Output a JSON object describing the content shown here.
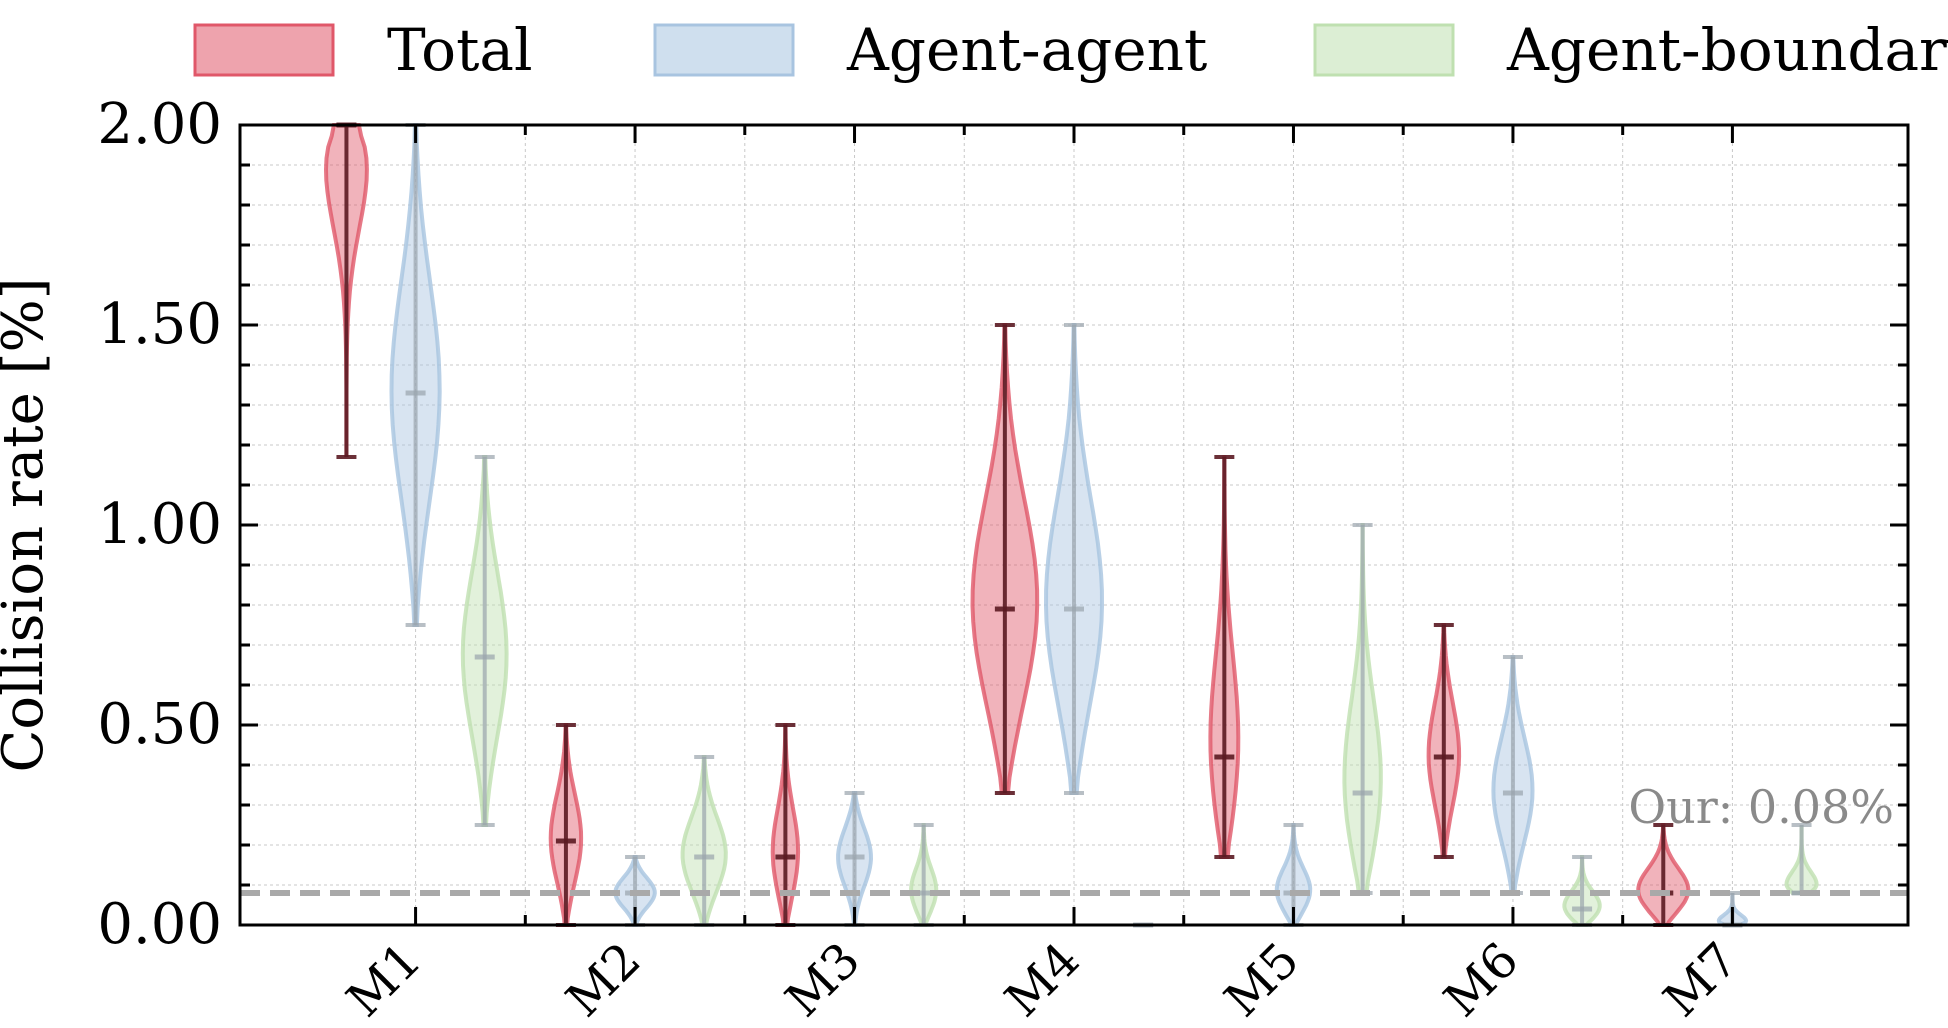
{
  "chart_data": {
    "type": "violin",
    "categories": [
      "M1",
      "M2",
      "M3",
      "M4",
      "M5",
      "M6",
      "M7"
    ],
    "ylabel": "Collision rate [%]",
    "xlabel": "",
    "ylim": [
      0,
      2.0
    ],
    "yticks": [
      "0.00",
      "0.50",
      "1.00",
      "1.50",
      "2.00"
    ],
    "grid": true,
    "legend_position": "top",
    "reference_line": {
      "value": 0.08,
      "label": "Our: 0.08%",
      "color": "#a9a9a9"
    },
    "series": [
      {
        "name": "Total",
        "color": "#e05769",
        "stats": [
          {
            "min": 1.17,
            "median": 2.0,
            "max": 2.0,
            "width": 0.3
          },
          {
            "min": 0.0,
            "median": 0.21,
            "max": 0.5,
            "width": 0.14
          },
          {
            "min": 0.0,
            "median": 0.17,
            "max": 0.5,
            "width": 0.12
          },
          {
            "min": 0.33,
            "median": 0.79,
            "max": 1.5,
            "width": 0.3
          },
          {
            "min": 0.17,
            "median": 0.42,
            "max": 1.17,
            "width": 0.14
          },
          {
            "min": 0.17,
            "median": 0.42,
            "max": 0.75,
            "width": 0.14
          },
          {
            "min": 0.0,
            "median": 0.08,
            "max": 0.25,
            "width": 0.24
          }
        ]
      },
      {
        "name": "Agent-agent",
        "color": "#a8c4e0",
        "stats": [
          {
            "min": 0.75,
            "median": 1.33,
            "max": 2.0,
            "width": 0.22
          },
          {
            "min": 0.0,
            "median": 0.08,
            "max": 0.17,
            "width": 0.18
          },
          {
            "min": 0.0,
            "median": 0.17,
            "max": 0.33,
            "width": 0.15
          },
          {
            "min": 0.33,
            "median": 0.79,
            "max": 1.5,
            "width": 0.26
          },
          {
            "min": 0.0,
            "median": 0.08,
            "max": 0.25,
            "width": 0.16
          },
          {
            "min": 0.08,
            "median": 0.33,
            "max": 0.67,
            "width": 0.18
          },
          {
            "min": 0.0,
            "median": 0.0,
            "max": 0.08,
            "width": 0.2
          }
        ]
      },
      {
        "name": "Agent-boundary",
        "color": "#bfe0b0",
        "stats": [
          {
            "min": 0.25,
            "median": 0.67,
            "max": 1.17,
            "width": 0.2
          },
          {
            "min": 0.0,
            "median": 0.17,
            "max": 0.42,
            "width": 0.2
          },
          {
            "min": 0.0,
            "median": 0.08,
            "max": 0.25,
            "width": 0.12
          },
          {
            "min": 0.0,
            "median": 0.0,
            "max": 0.0,
            "width": 0.05
          },
          {
            "min": 0.08,
            "median": 0.33,
            "max": 1.0,
            "width": 0.18
          },
          {
            "min": 0.0,
            "median": 0.04,
            "max": 0.17,
            "width": 0.18
          },
          {
            "min": 0.08,
            "median": 0.08,
            "max": 0.25,
            "width": 0.22
          }
        ]
      }
    ]
  }
}
